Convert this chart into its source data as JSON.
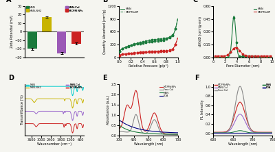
{
  "panel_A": {
    "title": "A",
    "categories": [
      "MSN",
      "MSN-NH2",
      "MSN-Col",
      "MCPM NPs"
    ],
    "values": [
      -20,
      17,
      -25,
      -14
    ],
    "errors": [
      1.2,
      0.8,
      1.5,
      1.2
    ],
    "colors": [
      "#1a7a3c",
      "#c8b400",
      "#9b59b6",
      "#cc2222"
    ],
    "ylabel": "Zeta Potential (mV)",
    "ylim": [
      -30,
      30
    ],
    "yticks": [
      -30,
      -20,
      -10,
      0,
      10,
      20,
      30
    ],
    "legend": [
      "MSN",
      "MSN-NH2",
      "MSN-Col",
      "MCPM NPs"
    ]
  },
  "panel_B": {
    "title": "B",
    "xlabel": "Relative Pressure (p/p°)",
    "ylabel": "Quantity Absorbed (cm³/g)",
    "ylim": [
      0,
      1200
    ],
    "yticks": [
      0,
      300,
      600,
      900,
      1200
    ],
    "msn_color": "#1a7a3c",
    "mcpm_color": "#cc2222",
    "legend": [
      "MSN",
      "MCPMsNP"
    ]
  },
  "panel_C": {
    "title": "C",
    "xlabel": "Pore Diameter (nm)",
    "ylabel": "dV/dD (cm³/g·nm)",
    "xlim": [
      0,
      10
    ],
    "ylim": [
      0.0,
      0.6
    ],
    "yticks": [
      0.0,
      0.15,
      0.3,
      0.45,
      0.6
    ],
    "msn_color": "#1a7a3c",
    "mcpm_color": "#cc2222",
    "legend": [
      "MSN",
      "MCPMsNP"
    ]
  },
  "panel_D": {
    "title": "D",
    "xlabel": "Wavenumber (cm⁻¹)",
    "ylabel": "Transmittance (%)",
    "xticks": [
      3600,
      3000,
      2400,
      1800,
      1200,
      600
    ],
    "legend": [
      "MSN",
      "MSN-NH2",
      "MSN-Col",
      "MCPMsNPs"
    ],
    "colors": [
      "#00cccc",
      "#c8b400",
      "#9966cc",
      "#cc2222"
    ]
  },
  "panel_E": {
    "title": "E",
    "xlabel": "Wavelength (nm)",
    "ylabel": "Absorbance (a.u.)",
    "xlim": [
      300,
      700
    ],
    "ylim": [
      0.0,
      2.5
    ],
    "yticks": [
      0.0,
      0.5,
      1.0,
      1.5,
      2.0,
      2.5
    ],
    "legend": [
      "MCPMsNPs",
      "Free Col",
      "MSN",
      "PDA"
    ],
    "colors": [
      "#cc2222",
      "#888888",
      "#1a7a3c",
      "#000080"
    ]
  },
  "panel_F": {
    "title": "F",
    "xlabel": "Wavelength (nm)",
    "ylabel": "FL Intensity",
    "xlim": [
      600,
      750
    ],
    "legend": [
      "MCPMsNPs",
      "MSN-Col",
      "Free Col",
      "MSN",
      "PDA"
    ],
    "colors": [
      "#cc2222",
      "#9966cc",
      "#888888",
      "#1a7a3c",
      "#000080"
    ]
  },
  "bg_color": "#f5f5f0"
}
